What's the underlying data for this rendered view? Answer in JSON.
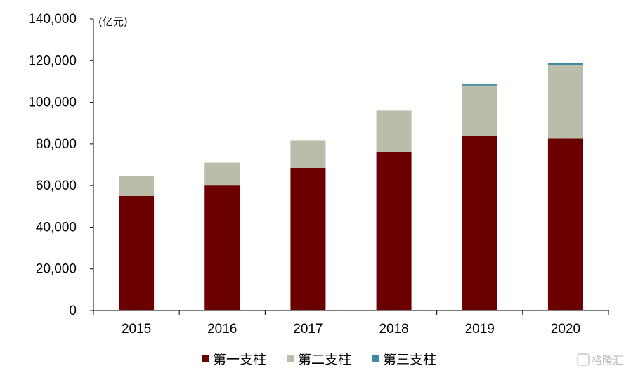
{
  "chart_data": {
    "type": "bar",
    "stacked": true,
    "categories": [
      "2015",
      "2016",
      "2017",
      "2018",
      "2019",
      "2020"
    ],
    "series": [
      {
        "name": "第一支柱",
        "color": "#6b0000",
        "values": [
          55000,
          60000,
          68500,
          76000,
          84000,
          82500
        ]
      },
      {
        "name": "第二支柱",
        "color": "#bcbcab",
        "values": [
          9500,
          11000,
          13000,
          20000,
          24000,
          35500
        ]
      },
      {
        "name": "第三支柱",
        "color": "#3f8aa3",
        "values": [
          0,
          0,
          0,
          0,
          600,
          800
        ]
      }
    ],
    "ylim": [
      0,
      140000
    ],
    "yticks": [
      "0",
      "20,000",
      "40,000",
      "60,000",
      "80,000",
      "100,000",
      "120,000",
      "140,000"
    ],
    "unit_label": "(亿元)",
    "grid": false,
    "legend_position": "bottom"
  },
  "watermark": {
    "text": "格隆汇",
    "icon": "g-logo-icon"
  }
}
